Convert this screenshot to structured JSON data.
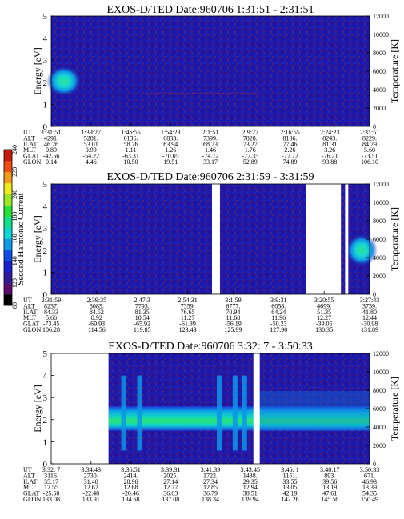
{
  "colorbar": {
    "label": "Second Harmonic Current",
    "ticks": [
      "80",
      "120",
      "140",
      "160",
      "180",
      "200",
      "220",
      "240"
    ],
    "colors": [
      "#000000",
      "#5a0f6e",
      "#2f1a9a",
      "#1a1fcf",
      "#0c4fe8",
      "#0d9be8",
      "#0cd9d6",
      "#12e08c",
      "#26e33a",
      "#9ce625",
      "#f0ea1f",
      "#f39a17",
      "#ee4e12",
      "#c81a08"
    ]
  },
  "chart_data": [
    {
      "type": "heatmap",
      "title": "EXOS-D/TED",
      "date": "Date:960706",
      "time_range": "1:31:51 - 2:31:51",
      "ylabel": "Energy [eV]",
      "y2label": "Temperature [K]",
      "ylim": [
        0,
        5
      ],
      "y2lim": [
        0,
        12000
      ],
      "yticks": [
        "0",
        "1",
        "2",
        "3",
        "4",
        "5"
      ],
      "y2ticks": [
        "0",
        "2000",
        "4000",
        "6000",
        "8000",
        "10000",
        "12000"
      ],
      "row_labels": [
        "UT",
        "ALT",
        "ILAT",
        "MLT",
        "GLAT",
        "GLON"
      ],
      "columns": [
        [
          "1:31:51",
          "4291.",
          "46.26",
          "0.89",
          "-42.56",
          "0.14"
        ],
        [
          "1:39:27",
          "5281.",
          "53.01",
          "0.99",
          "-54.22",
          "4.46"
        ],
        [
          "1:46:55",
          "6136.",
          "58.76",
          "1.11",
          "-63.31",
          "10.50"
        ],
        [
          "1:54:23",
          "6833.",
          "63.94",
          "1.26",
          "-70.05",
          "19.51"
        ],
        [
          "2:1:51",
          "7399.",
          "68.73",
          "1.46",
          "-74.72",
          "33.17"
        ],
        [
          "2:9:27",
          "7828.",
          "73.27",
          "1.76",
          "-77.35",
          "52.89"
        ],
        [
          "2:16:55",
          "8106.",
          "77.46",
          "2.26",
          "-77.72",
          "74.89"
        ],
        [
          "2:24:23",
          "8243.",
          "81.31",
          "3.26",
          "-76.21",
          "93.88"
        ],
        [
          "2:31:51",
          "8229.",
          "84.29",
          "5.60",
          "-73.51",
          "106.10"
        ]
      ],
      "data_gaps": [],
      "features": [
        {
          "x": [
            0.0,
            0.07
          ],
          "y": [
            1.5,
            2.6
          ],
          "level": "high"
        },
        {
          "x": [
            0.3,
            0.65
          ],
          "y": [
            1.4,
            1.6
          ],
          "level": "low"
        }
      ]
    },
    {
      "type": "heatmap",
      "title": "EXOS-D/TED",
      "date": "Date:960706",
      "time_range": "2:31:59 - 3:31:59",
      "ylabel": "Energy [eV]",
      "y2label": "Temperature [K]",
      "ylim": [
        0,
        5
      ],
      "y2lim": [
        0,
        12000
      ],
      "yticks": [
        "0",
        "1",
        "2",
        "3",
        "4",
        "5"
      ],
      "y2ticks": [
        "0",
        "2000",
        "4000",
        "6000",
        "8000",
        "10000",
        "12000"
      ],
      "row_labels": [
        "UT",
        "ALT",
        "ILAT",
        "MLT",
        "GLAT",
        "GLON"
      ],
      "columns": [
        [
          "2:31:59",
          "8237.",
          "84.33",
          "5.66",
          "-73.45",
          "106.28"
        ],
        [
          "2:39:35",
          "8085.",
          "84.52",
          "8.92",
          "-69.93",
          "114.56"
        ],
        [
          "2:47:3",
          "7793.",
          "81.35",
          "10.54",
          "-65.92",
          "119.85"
        ],
        [
          "2:54:31",
          "7359.",
          "76.65",
          "11.27",
          "-61.39",
          "123.43"
        ],
        [
          "3:1:59",
          "6777.",
          "70.94",
          "11.68",
          "-56.19",
          "125.99"
        ],
        [
          "3:9:31",
          "6058.",
          "64.24",
          "11.96",
          "-50.23",
          "127.90"
        ],
        [
          "3:20:55",
          "4699.",
          "51.35",
          "12.27",
          "-39.05",
          "130.35"
        ],
        [
          "3:27:43",
          "3759.",
          "41.80",
          "12.44",
          "-30.98",
          "131.89"
        ]
      ],
      "data_gaps": [
        [
          0.505,
          0.53
        ],
        [
          0.8,
          0.91
        ],
        [
          0.923,
          0.933
        ]
      ],
      "features": [
        {
          "x": [
            0.94,
            1.0
          ],
          "y": [
            1.4,
            2.6
          ],
          "level": "high"
        }
      ]
    },
    {
      "type": "heatmap",
      "title": "EXOS-D/TED",
      "date": "Date:960706",
      "time_range": "3:32: 7 - 3:50:33",
      "ylabel": "Energy [eV]",
      "y2label": "Temperature [K]",
      "ylim": [
        0,
        5
      ],
      "y2lim": [
        0,
        12000
      ],
      "yticks": [
        "0",
        "1",
        "2",
        "3",
        "4",
        "5"
      ],
      "y2ticks": [
        "0",
        "2000",
        "4000",
        "6000",
        "8000",
        "10000",
        "12000"
      ],
      "row_labels": [
        "UT",
        "ALT",
        "ILAT",
        "MLT",
        "GLAT",
        "GLON"
      ],
      "columns": [
        [
          "3:32: 7",
          "3116.",
          "35.17",
          "12.55",
          "-25.50",
          "133.08"
        ],
        [
          "3:34:43",
          "2730.",
          "31.48",
          "12.62",
          "-22.48",
          "133.91"
        ],
        [
          "3:36:51",
          "2414.",
          "28.96",
          "12.68",
          "-20.46",
          "134.68"
        ],
        [
          "3:39:31",
          "2025.",
          "27.14",
          "12.77",
          "36.63",
          "137.08"
        ],
        [
          "3:41:39",
          "1722.",
          "27.34",
          "12.85",
          "36.79",
          "138.34"
        ],
        [
          "3:43:45",
          "1438.",
          "29.35",
          "12.94",
          "38.51",
          "139.94"
        ],
        [
          "3:46: 1",
          "1151.",
          "33.55",
          "13.05",
          "42.19",
          "142.26"
        ],
        [
          "3:48:17",
          "893.",
          "39.56",
          "13.19",
          "47.61",
          "145.56"
        ],
        [
          "3:50:33",
          "671.",
          "46.93",
          "13.39",
          "54.35",
          "150.49"
        ]
      ],
      "data_gaps": [
        [
          0.0,
          0.18
        ],
        [
          0.635,
          0.655
        ]
      ],
      "features": [
        {
          "x": [
            0.18,
            1.0
          ],
          "y": [
            1.5,
            2.6
          ],
          "level": "high"
        }
      ]
    }
  ]
}
